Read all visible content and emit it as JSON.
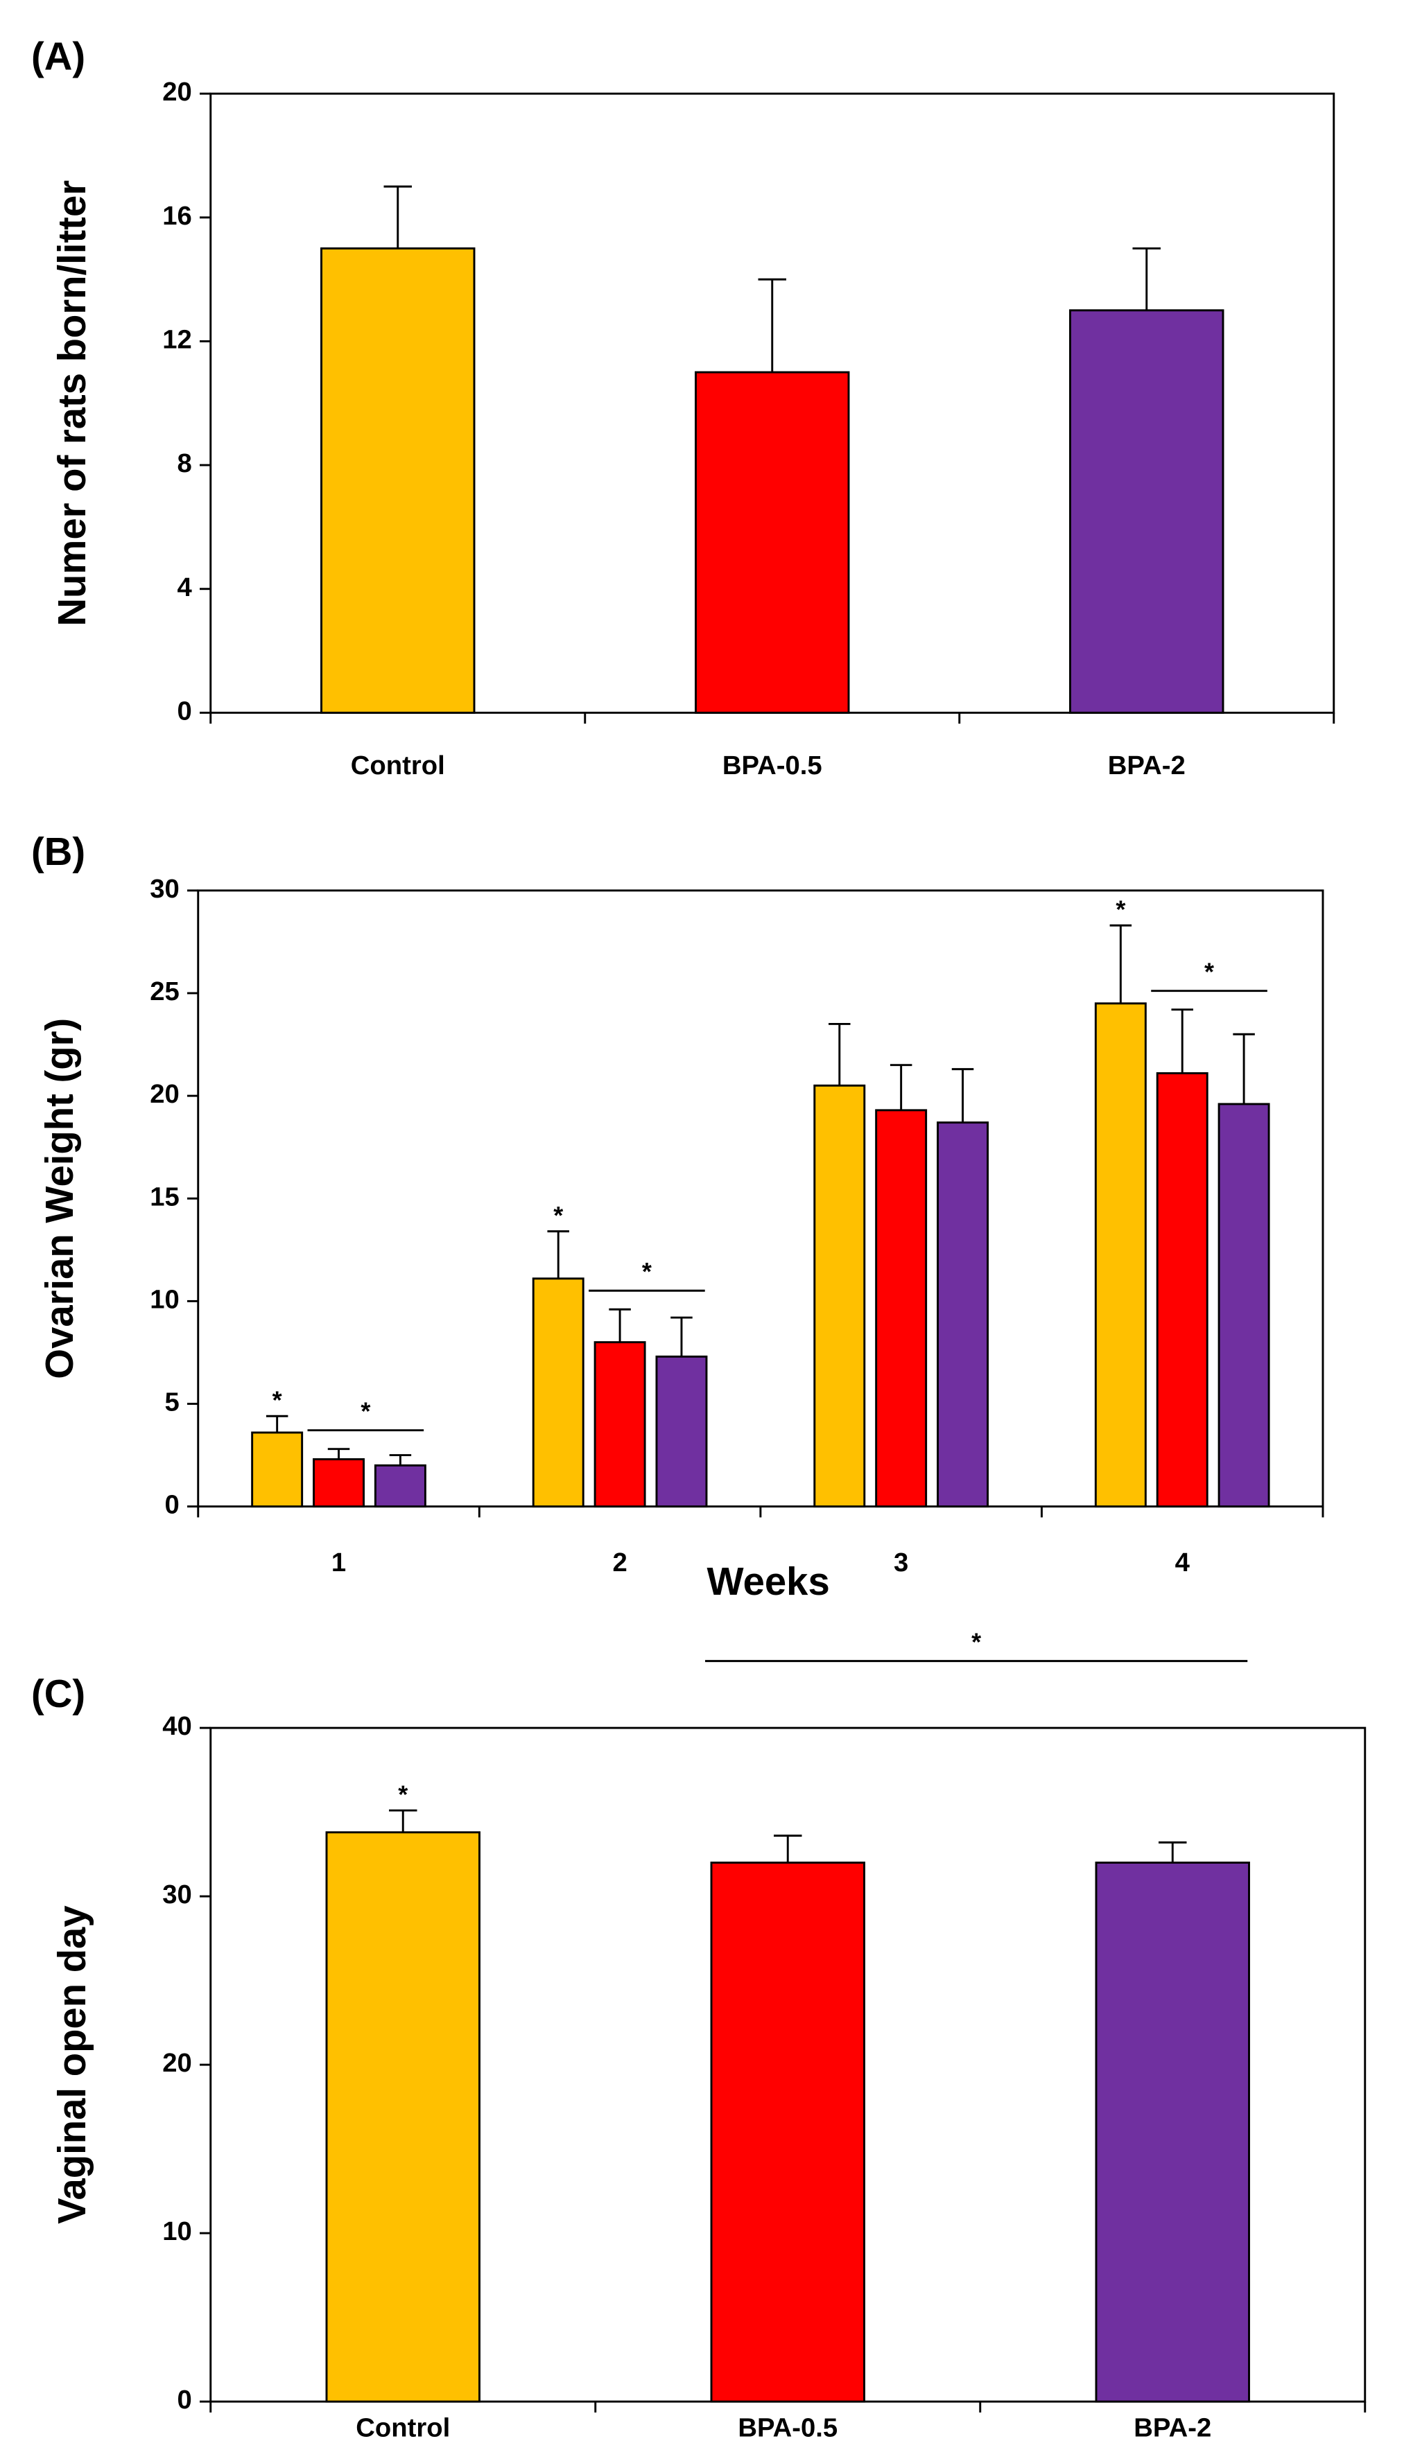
{
  "chart_data": [
    {
      "type": "bar",
      "panel_label": "(A)",
      "y_label": "Numer of rats born/litter",
      "categories": [
        "Control",
        "BPA-0.5",
        "BPA-2"
      ],
      "series": [
        {
          "values": [
            15,
            11,
            13
          ],
          "errors": [
            2,
            3,
            2
          ],
          "colors": [
            "#ffc000",
            "#ff0000",
            "#7030a0"
          ]
        }
      ],
      "ylim": [
        0,
        20
      ],
      "yticks": [
        0,
        4,
        8,
        12,
        16,
        20
      ]
    },
    {
      "type": "grouped_bar",
      "panel_label": "(B)",
      "y_label": "Ovarian Weight (gr)",
      "x_label": "Weeks",
      "categories": [
        "1",
        "2",
        "3",
        "4"
      ],
      "series": [
        {
          "color": "#ffc000",
          "values": [
            3.6,
            11.1,
            20.5,
            24.5
          ],
          "errors": [
            0.8,
            2.3,
            3,
            3.8
          ]
        },
        {
          "color": "#ff0000",
          "values": [
            2.3,
            8,
            19.3,
            21.1
          ],
          "errors": [
            0.5,
            1.6,
            2.2,
            3.1
          ]
        },
        {
          "color": "#7030a0",
          "values": [
            2.0,
            7.3,
            18.7,
            19.6
          ],
          "errors": [
            0.5,
            1.9,
            2.6,
            3.4
          ]
        }
      ],
      "ylim": [
        0,
        30
      ],
      "yticks": [
        0,
        5,
        10,
        15,
        20,
        25,
        30
      ],
      "annotations": [
        {
          "text": "*",
          "category": 0,
          "series": [
            0
          ]
        },
        {
          "text": "*",
          "category": 0,
          "series": [
            1,
            2
          ]
        },
        {
          "text": "*",
          "category": 1,
          "series": [
            0
          ]
        },
        {
          "text": "*",
          "category": 1,
          "series": [
            1,
            2
          ]
        },
        {
          "text": "*",
          "category": 3,
          "series": [
            0
          ]
        },
        {
          "text": "*",
          "category": 3,
          "series": [
            1,
            2
          ]
        }
      ]
    },
    {
      "type": "bar",
      "panel_label": "(C)",
      "y_label": "Vaginal open day",
      "categories": [
        "Control",
        "BPA-0.5",
        "BPA-2"
      ],
      "series": [
        {
          "values": [
            33.8,
            32,
            32
          ],
          "errors": [
            1.3,
            1.6,
            1.2
          ],
          "colors": [
            "#ffc000",
            "#ff0000",
            "#7030a0"
          ]
        }
      ],
      "ylim": [
        0,
        40
      ],
      "yticks": [
        0,
        10,
        20,
        30,
        40
      ],
      "annotations": [
        {
          "text": "*",
          "category": 0,
          "series": [
            0
          ]
        },
        {
          "text": "*",
          "category": [
            1,
            2
          ],
          "series": [
            0
          ]
        }
      ]
    }
  ]
}
